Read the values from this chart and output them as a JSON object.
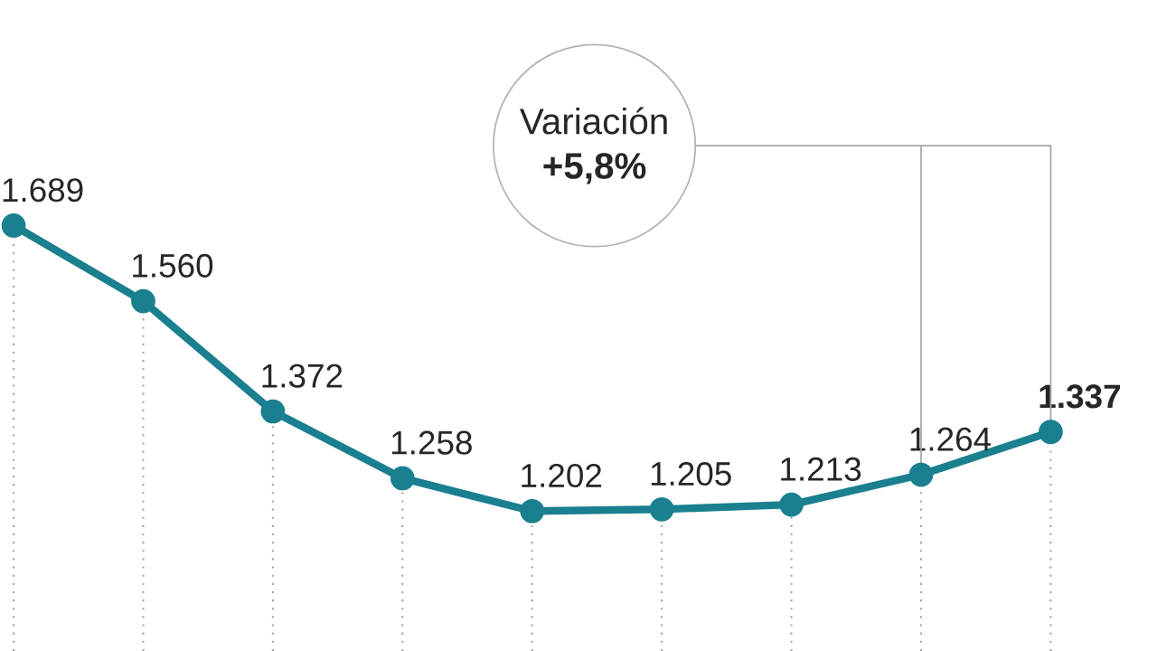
{
  "chart_data": {
    "type": "line",
    "categories": [
      null,
      null,
      null,
      null,
      null,
      null,
      null,
      null,
      null
    ],
    "series": [
      {
        "color": "#1a7f8e",
        "values": [
          1689,
          1560,
          1372,
          1258,
          1202,
          1205,
          1213,
          1264,
          1337
        ],
        "value_labels": [
          "1.689",
          "1.560",
          "1.372",
          "1.258",
          "1.202",
          "1.205",
          "1.213",
          "1.264",
          "**1.337**"
        ]
      }
    ],
    "marker": "circle",
    "grid": "x",
    "annotations": [
      "Variación **+5,8%**"
    ]
  }
}
